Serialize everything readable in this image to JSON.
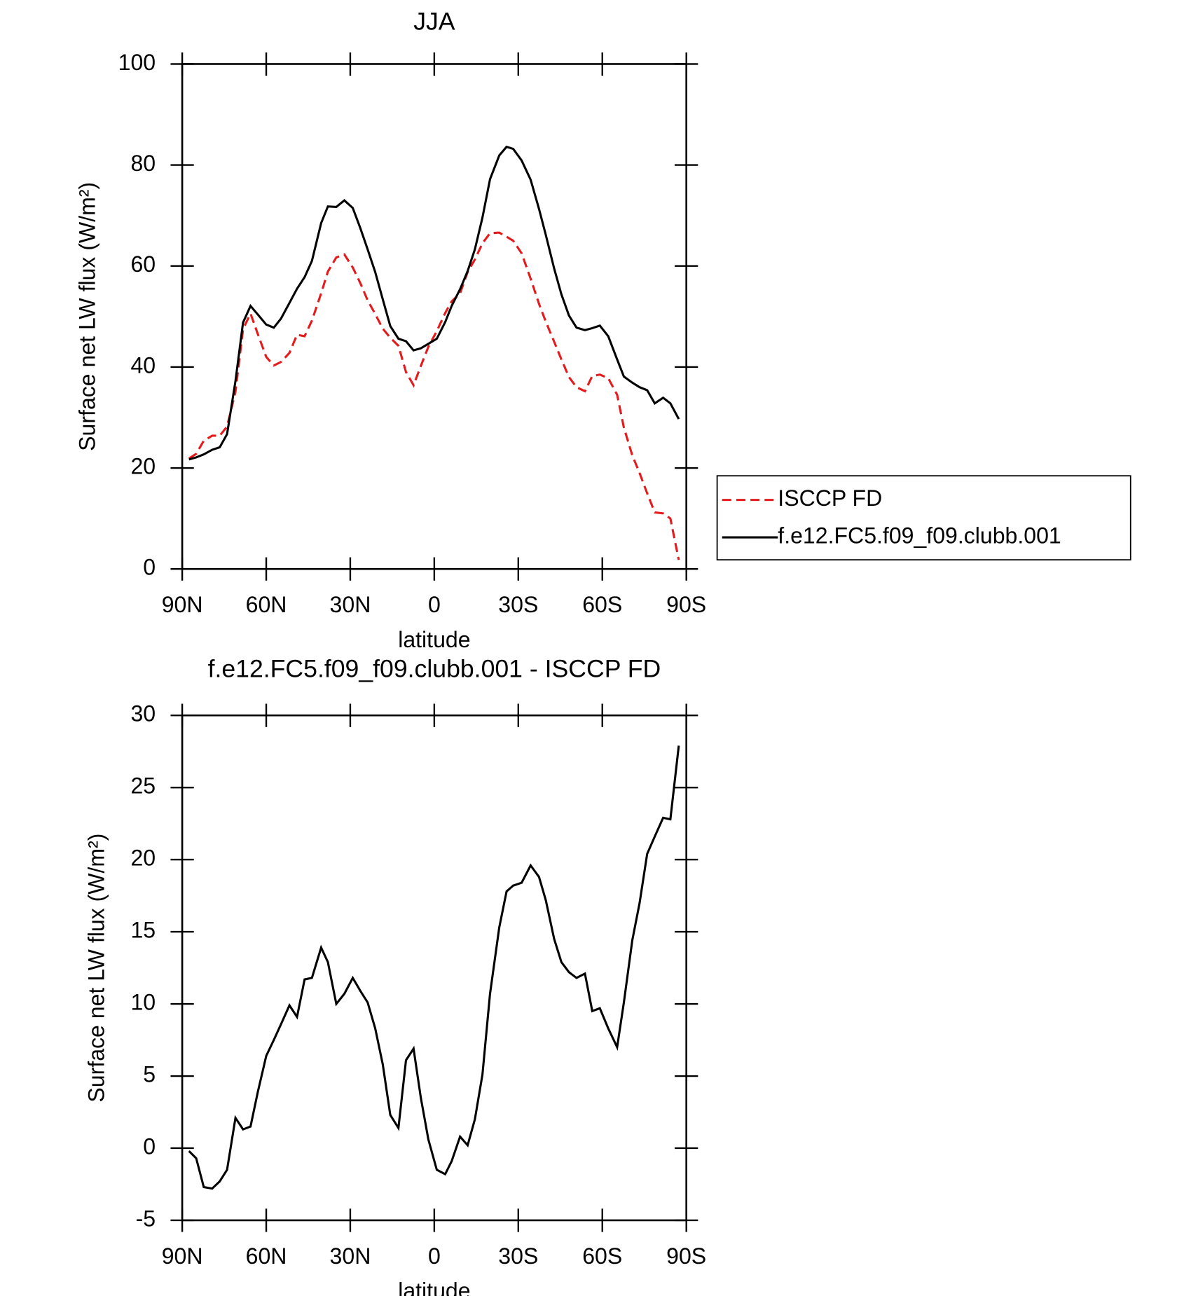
{
  "chart_data": [
    {
      "type": "line",
      "title": "JJA",
      "x_label": "latitude",
      "y_label": "Surface net LW flux (W/m²)",
      "x": [
        87.6,
        85.0,
        82.3,
        79.3,
        76.6,
        74.0,
        71.0,
        68.3,
        65.6,
        63.0,
        60.0,
        57.3,
        54.7,
        51.7,
        49.0,
        46.3,
        43.7,
        40.4,
        38.0,
        35.0,
        32.1,
        29.1,
        26.4,
        23.8,
        21.1,
        18.4,
        15.7,
        12.8,
        10.1,
        7.4,
        4.8,
        2.1,
        -0.9,
        -3.9,
        -6.2,
        -9.2,
        -11.9,
        -14.5,
        -17.2,
        -19.9,
        -23.2,
        -25.8,
        -28.2,
        -31.2,
        -34.4,
        -37.4,
        -39.8,
        -42.8,
        -45.4,
        -48.1,
        -50.8,
        -53.8,
        -56.4,
        -59.1,
        -62.1,
        -65.3,
        -67.7,
        -70.7,
        -73.3,
        -76.0,
        -78.7,
        -81.7,
        -84.3,
        -87.3
      ],
      "series": [
        {
          "name": "ISCCP FD",
          "color": "#e41a1c",
          "dashed": true,
          "values": [
            21.9,
            22.8,
            25.4,
            26.4,
            26.4,
            28.2,
            35.1,
            47.5,
            50.6,
            46.5,
            42.0,
            40.3,
            41.0,
            42.8,
            46.4,
            46.1,
            49.2,
            54.6,
            58.9,
            61.7,
            62.3,
            59.7,
            56.6,
            53.2,
            50.5,
            47.6,
            45.8,
            44.2,
            39.0,
            36.4,
            40.2,
            44.0,
            47.1,
            50.7,
            53.0,
            54.6,
            58.8,
            61.3,
            64.5,
            66.5,
            66.6,
            65.8,
            65.0,
            62.5,
            57.5,
            52.5,
            49.0,
            45.0,
            41.5,
            38.0,
            36.0,
            35.2,
            38.2,
            38.5,
            37.8,
            34.5,
            28.0,
            22.5,
            19.0,
            15.0,
            11.2,
            11.0,
            10.0,
            1.8
          ]
        },
        {
          "name": "f.e12.FC5.f09_f09.clubb.001",
          "color": "#000000",
          "dashed": false,
          "values": [
            21.7,
            22.1,
            22.7,
            23.6,
            24.1,
            26.7,
            37.2,
            48.8,
            52.1,
            50.4,
            48.4,
            47.8,
            49.6,
            52.7,
            55.5,
            57.8,
            61.0,
            68.5,
            71.8,
            71.7,
            73.0,
            71.5,
            67.5,
            63.3,
            58.8,
            53.4,
            48.1,
            45.6,
            45.1,
            43.3,
            43.7,
            44.6,
            45.6,
            48.9,
            52.1,
            55.4,
            59.0,
            63.3,
            69.6,
            77.2,
            81.9,
            83.6,
            83.2,
            80.9,
            77.1,
            71.3,
            66.2,
            59.5,
            54.4,
            50.2,
            47.8,
            47.3,
            47.7,
            48.2,
            46.1,
            41.5,
            38.1,
            36.9,
            36.0,
            35.4,
            32.8,
            33.9,
            32.8,
            29.7
          ]
        }
      ],
      "xlim": [
        90,
        -90
      ],
      "xticks": [
        {
          "value": 90,
          "label": "90N"
        },
        {
          "value": 60,
          "label": "60N"
        },
        {
          "value": 30,
          "label": "30N"
        },
        0,
        {
          "value": -30,
          "label": "30S"
        },
        {
          "value": -60,
          "label": "60S"
        },
        {
          "value": -90,
          "label": "90S"
        }
      ],
      "ylim": [
        0,
        100
      ],
      "yticks": [
        0,
        20,
        40,
        60,
        80,
        100
      ],
      "legend": "right"
    },
    {
      "type": "line",
      "title": "f.e12.FC5.f09_f09.clubb.001 - ISCCP FD",
      "x_label": "latitude",
      "y_label": "Surface net LW flux (W/m²)",
      "x": [
        87.6,
        85.0,
        82.3,
        79.3,
        76.6,
        74.0,
        71.0,
        68.3,
        65.6,
        63.0,
        60.0,
        57.3,
        54.7,
        51.7,
        49.0,
        46.3,
        43.7,
        40.4,
        38.0,
        35.0,
        32.1,
        29.1,
        26.4,
        23.8,
        21.1,
        18.4,
        15.7,
        12.8,
        10.1,
        7.4,
        4.8,
        2.1,
        -0.9,
        -3.9,
        -6.2,
        -9.2,
        -11.9,
        -14.5,
        -17.2,
        -19.9,
        -23.2,
        -25.8,
        -28.2,
        -31.2,
        -34.4,
        -37.4,
        -39.8,
        -42.8,
        -45.4,
        -48.1,
        -50.8,
        -53.8,
        -56.4,
        -59.1,
        -62.1,
        -65.3,
        -67.7,
        -70.7,
        -73.3,
        -76.0,
        -78.7,
        -81.7,
        -84.3,
        -87.3
      ],
      "color": "#000000",
      "values": [
        -0.2,
        -0.7,
        -2.7,
        -2.8,
        -2.3,
        -1.5,
        2.1,
        1.3,
        1.5,
        3.9,
        6.4,
        7.5,
        8.6,
        9.9,
        9.1,
        11.7,
        11.8,
        13.9,
        12.9,
        10.0,
        10.7,
        11.8,
        10.9,
        10.1,
        8.3,
        5.8,
        2.3,
        1.4,
        6.1,
        6.9,
        3.5,
        0.6,
        -1.5,
        -1.8,
        -0.9,
        0.8,
        0.2,
        2.0,
        5.1,
        10.7,
        15.3,
        17.8,
        18.2,
        18.4,
        19.6,
        18.8,
        17.2,
        14.5,
        12.9,
        12.2,
        11.8,
        12.1,
        9.5,
        9.7,
        8.3,
        7.0,
        10.1,
        14.4,
        17.0,
        20.4,
        21.6,
        22.9,
        22.8,
        27.9
      ],
      "xlim": [
        90,
        -90
      ],
      "xticks": [
        {
          "value": 90,
          "label": "90N"
        },
        {
          "value": 60,
          "label": "60N"
        },
        {
          "value": 30,
          "label": "30N"
        },
        0,
        {
          "value": -30,
          "label": "30S"
        },
        {
          "value": -60,
          "label": "60S"
        },
        {
          "value": -90,
          "label": "90S"
        }
      ],
      "ylim": [
        -5,
        30
      ],
      "yticks": [
        -5,
        0,
        5,
        10,
        15,
        20,
        25,
        30
      ]
    }
  ]
}
